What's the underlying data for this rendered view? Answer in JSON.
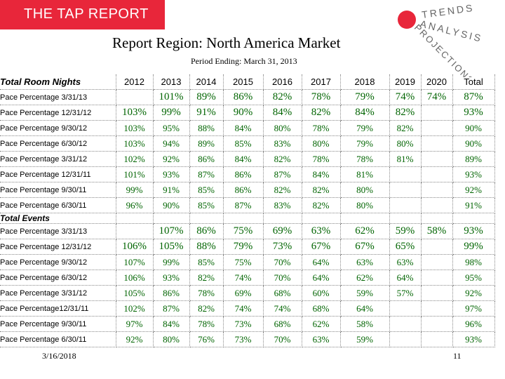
{
  "header": {
    "brand": "THE TAP REPORT",
    "logo": [
      "TRENDS",
      "ANALYSIS",
      "PROJECTIONS"
    ],
    "title": "Report Region: North America Market",
    "subtitle": "Period Ending: March 31, 2013"
  },
  "table": {
    "columns": [
      "2012",
      "2013",
      "2014",
      "2015",
      "2016",
      "2017",
      "2018",
      "2019",
      "2020",
      "Total"
    ],
    "sections": [
      {
        "title": "Total Room Nights",
        "rows": [
          {
            "label": "Pace Percentage 3/31/13",
            "cells": [
              null,
              "101%",
              "89%",
              "86%",
              "82%",
              "78%",
              "79%",
              "74%",
              "74%",
              "87%"
            ]
          },
          {
            "label": "Pace Percentage 12/31/12",
            "cells": [
              "103%",
              "99%",
              "91%",
              "90%",
              "84%",
              "82%",
              "84%",
              "82%",
              null,
              "93%"
            ]
          },
          {
            "label": "Pace Percentage 9/30/12",
            "cells": [
              "103%",
              "95%",
              "88%",
              "84%",
              "80%",
              "78%",
              "79%",
              "82%",
              null,
              "90%"
            ]
          },
          {
            "label": "Pace Percentage 6/30/12",
            "cells": [
              "103%",
              "94%",
              "89%",
              "85%",
              "83%",
              "80%",
              "79%",
              "80%",
              null,
              "90%"
            ]
          },
          {
            "label": "Pace Percentage 3/31/12",
            "cells": [
              "102%",
              "92%",
              "86%",
              "84%",
              "82%",
              "78%",
              "78%",
              "81%",
              null,
              "89%"
            ]
          },
          {
            "label": "Pace Percentage 12/31/11",
            "cells": [
              "101%",
              "93%",
              "87%",
              "86%",
              "87%",
              "84%",
              "81%",
              null,
              null,
              "93%"
            ]
          },
          {
            "label": "Pace Percentage 9/30/11",
            "cells": [
              "99%",
              "91%",
              "85%",
              "86%",
              "82%",
              "82%",
              "80%",
              null,
              null,
              "92%"
            ]
          },
          {
            "label": "Pace Percentage 6/30/11",
            "cells": [
              "96%",
              "90%",
              "85%",
              "87%",
              "83%",
              "82%",
              "80%",
              null,
              null,
              "91%"
            ]
          }
        ]
      },
      {
        "title": "Total Events",
        "rows": [
          {
            "label": "Pace Percentage 3/31/13",
            "cells": [
              null,
              "107%",
              "86%",
              "75%",
              "69%",
              "63%",
              "62%",
              "59%",
              "58%",
              "93%"
            ]
          },
          {
            "label": "Pace Percentage 12/31/12",
            "cells": [
              "106%",
              "105%",
              "88%",
              "79%",
              "73%",
              "67%",
              "67%",
              "65%",
              null,
              "99%"
            ]
          },
          {
            "label": "Pace Percentage 9/30/12",
            "cells": [
              "107%",
              "99%",
              "85%",
              "75%",
              "70%",
              "64%",
              "63%",
              "63%",
              null,
              "98%"
            ]
          },
          {
            "label": "Pace Percentage 6/30/12",
            "cells": [
              "106%",
              "93%",
              "82%",
              "74%",
              "70%",
              "64%",
              "62%",
              "64%",
              null,
              "95%"
            ]
          },
          {
            "label": "Pace Percentage 3/31/12",
            "cells": [
              "105%",
              "86%",
              "78%",
              "69%",
              "68%",
              "60%",
              "59%",
              "57%",
              null,
              "92%"
            ]
          },
          {
            "label": "Pace Percentage12/31/11",
            "cells": [
              "102%",
              "87%",
              "82%",
              "74%",
              "74%",
              "68%",
              "64%",
              null,
              null,
              "97%"
            ]
          },
          {
            "label": "Pace Percentage 9/30/11",
            "cells": [
              "97%",
              "84%",
              "78%",
              "73%",
              "68%",
              "62%",
              "58%",
              null,
              null,
              "96%"
            ]
          },
          {
            "label": "Pace Percentage 6/30/11",
            "cells": [
              "92%",
              "80%",
              "76%",
              "73%",
              "70%",
              "63%",
              "59%",
              null,
              null,
              "93%"
            ]
          }
        ]
      }
    ]
  },
  "footer": {
    "date": "3/16/2018",
    "page": "11"
  }
}
